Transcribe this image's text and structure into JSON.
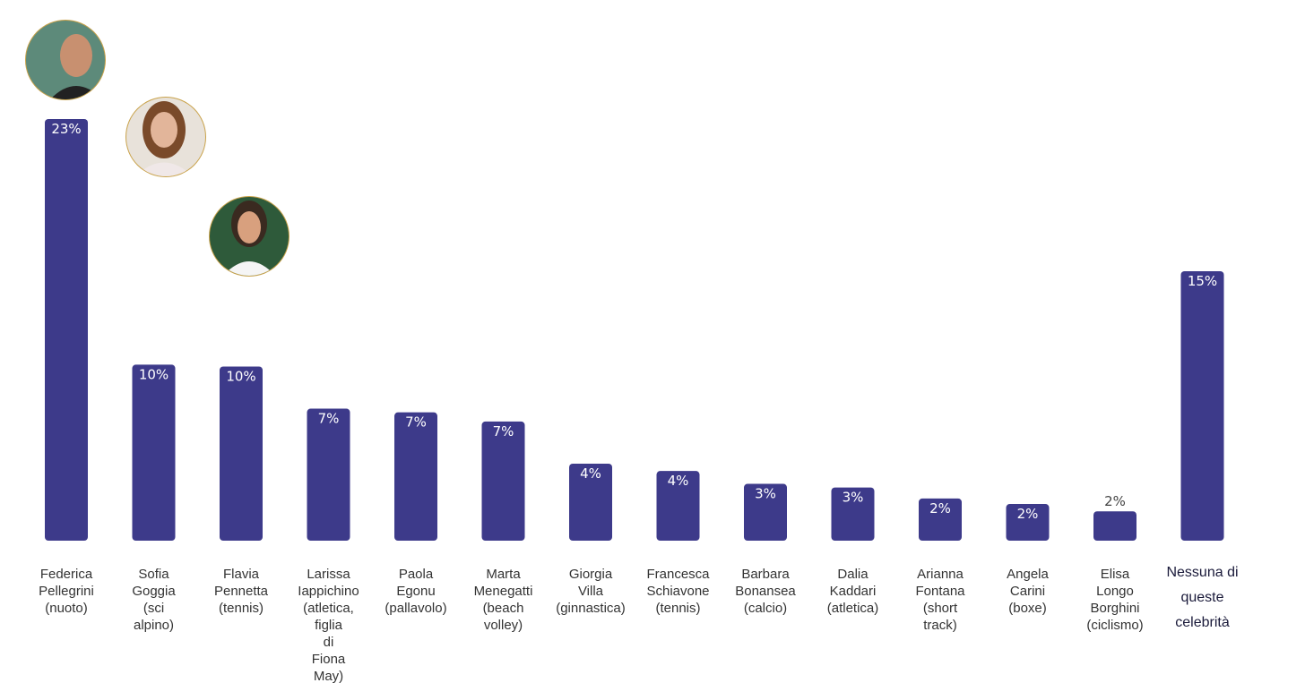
{
  "chart_data": {
    "type": "bar",
    "categories": [
      "Federica\nPellegrini\n(nuoto)",
      "Sofia\nGoggia\n(sci\nalpino)",
      "Flavia\nPennetta\n(tennis)",
      "Larissa\nIappichino\n(atletica,\nfiglia\ndi\nFiona\nMay)",
      "Paola\nEgonu\n(pallavolo)",
      "Marta\nMenegatti\n(beach\nvolley)",
      "Giorgia\nVilla\n(ginnastica)",
      "Francesca\nSchiavone\n(tennis)",
      "Barbara\nBonansea\n(calcio)",
      "Dalia\nKaddari\n(atletica)",
      "Arianna\nFontana\n(short\ntrack)",
      "Angela\nCarini\n(boxe)",
      "Elisa\nLongo\nBorghini\n(ciclismo)",
      "Nessuna di\nqueste\ncelebrità"
    ],
    "values": [
      23,
      9.6,
      9.5,
      7.2,
      7.0,
      6.5,
      4.2,
      3.8,
      3.1,
      2.9,
      2.3,
      2.0,
      1.6,
      14.7
    ],
    "value_labels": [
      "23%",
      "10%",
      "10%",
      "7%",
      "7%",
      "7%",
      "4%",
      "4%",
      "3%",
      "3%",
      "2%",
      "2%",
      "2%",
      "15%"
    ],
    "color": "#3d3a8a"
  }
}
